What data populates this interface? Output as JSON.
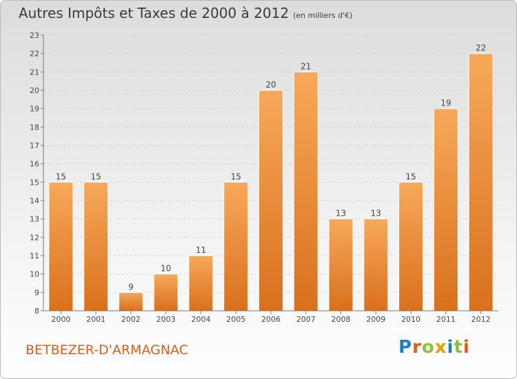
{
  "header": {
    "title": "Autres Impôts et Taxes de 2000 à 2012",
    "unit": "(en milliers d'€)"
  },
  "footer": {
    "commune": "BETBEZER-D'ARMAGNAC",
    "logo_letters": [
      "P",
      "r",
      "o",
      "x",
      "i",
      "t",
      "i"
    ]
  },
  "colors": {
    "bar_top": "#f7a95a",
    "bar_bottom": "#d9701c",
    "commune": "#de5b12",
    "logo": [
      "#1f7dc4",
      "#e05a16",
      "#8ac23a",
      "#e0a000",
      "#1f7dc4",
      "#8ac23a",
      "#e05a16"
    ]
  },
  "chart_data": {
    "type": "bar",
    "categories": [
      "2000",
      "2001",
      "2002",
      "2003",
      "2004",
      "2005",
      "2006",
      "2007",
      "2008",
      "2009",
      "2010",
      "2011",
      "2012"
    ],
    "values": [
      15,
      15,
      9,
      10,
      11,
      15,
      20,
      21,
      13,
      13,
      15,
      19,
      22
    ],
    "data_labels": [
      "15",
      "15",
      "9",
      "10",
      "11",
      "15",
      "20",
      "21",
      "13",
      "13",
      "15",
      "19",
      "22"
    ],
    "ylim": [
      8,
      23
    ],
    "yticks": [
      "8",
      "9",
      "10",
      "11",
      "12",
      "13",
      "14",
      "15",
      "16",
      "17",
      "18",
      "19",
      "20",
      "21",
      "22",
      "23"
    ],
    "grid": true,
    "legend": "none"
  }
}
